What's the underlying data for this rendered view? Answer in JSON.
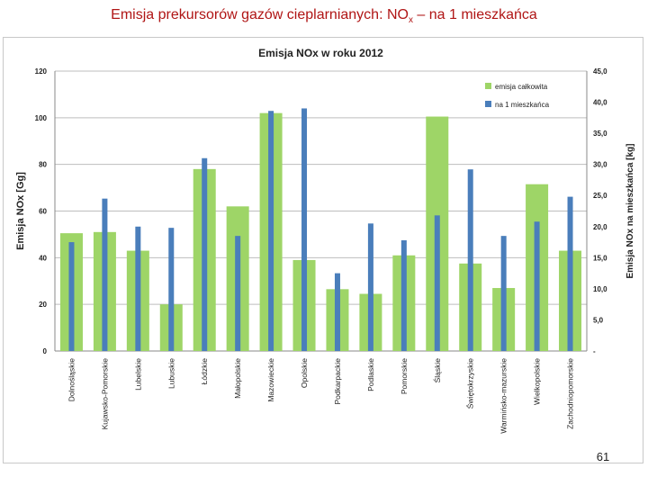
{
  "slide": {
    "title_main": "Emisja prekursorów gazów cieplarnianych:  NO",
    "title_sub": "x",
    "title_tail": " – na 1 mieszkańca",
    "page_number": "61"
  },
  "colors": {
    "title": "#b01515",
    "series_total": "#9ed567",
    "series_per_capita": "#4a7ebb"
  },
  "chart_data": {
    "type": "bar",
    "title": "Emisja NOx w roku 2012",
    "ylabel": "Emisja NOx [Gg]",
    "y2label": "Emisja NOx na mieszkańca [kg]",
    "ylim": [
      0,
      120
    ],
    "y2lim": [
      0,
      45
    ],
    "yticks": [
      "0",
      "20",
      "40",
      "60",
      "80",
      "100",
      "120"
    ],
    "y2ticks": [
      "-",
      "5,0",
      "10,0",
      "15,0",
      "20,0",
      "25,0",
      "30,0",
      "35,0",
      "40,0",
      "45,0"
    ],
    "grid": true,
    "legend_position": "top-right",
    "categories": [
      "Dolnośląskie",
      "Kujawsko-Pomorskie",
      "Lubelskie",
      "Lubuskie",
      "Łódzkie",
      "Małopolskie",
      "Mazowieckie",
      "Opolskie",
      "Podkarpackie",
      "Podlaskie",
      "Pomorskie",
      "Śląskie",
      "Świętokrzyskie",
      "Warmińsko-mazurskie",
      "Wielkopolskie",
      "Zachodniopomorskie"
    ],
    "series": [
      {
        "name": "emisja całkowita",
        "axis": "left",
        "values": [
          50.5,
          51,
          43,
          20,
          78,
          62,
          102,
          39,
          26.5,
          24.5,
          41,
          100.5,
          37.5,
          27,
          71.5,
          43
        ]
      },
      {
        "name": "na 1 mieszkańca",
        "axis": "right",
        "values": [
          17.5,
          24.5,
          20,
          19.8,
          31,
          18.5,
          38.6,
          39,
          12.5,
          20.5,
          17.8,
          21.8,
          29.2,
          18.5,
          20.8,
          24.8
        ]
      }
    ]
  }
}
